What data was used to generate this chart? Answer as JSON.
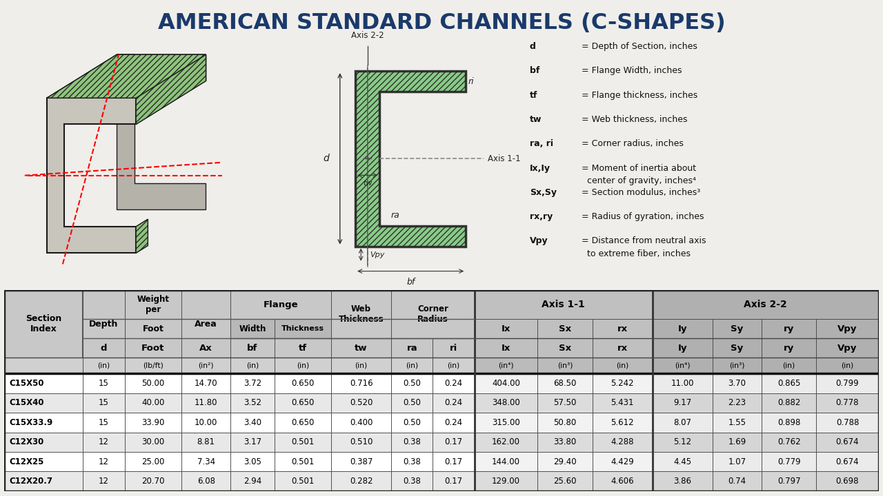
{
  "title": "AMERICAN STANDARD CHANNELS (C-SHAPES)",
  "title_color": "#1a3a6b",
  "bg_color": "#f0eeea",
  "rows": [
    [
      "C15X50",
      "15",
      "50.00",
      "14.70",
      "3.72",
      "0.650",
      "0.716",
      "0.50",
      "0.24",
      "404.00",
      "68.50",
      "5.242",
      "11.00",
      "3.70",
      "0.865",
      "0.799"
    ],
    [
      "C15X40",
      "15",
      "40.00",
      "11.80",
      "3.52",
      "0.650",
      "0.520",
      "0.50",
      "0.24",
      "348.00",
      "57.50",
      "5.431",
      "9.17",
      "2.23",
      "0.882",
      "0.778"
    ],
    [
      "C15X33.9",
      "15",
      "33.90",
      "10.00",
      "3.40",
      "0.650",
      "0.400",
      "0.50",
      "0.24",
      "315.00",
      "50.80",
      "5.612",
      "8.07",
      "1.55",
      "0.898",
      "0.788"
    ],
    [
      "C12X30",
      "12",
      "30.00",
      "8.81",
      "3.17",
      "0.501",
      "0.510",
      "0.38",
      "0.17",
      "162.00",
      "33.80",
      "4.288",
      "5.12",
      "1.69",
      "0.762",
      "0.674"
    ],
    [
      "C12X25",
      "12",
      "25.00",
      "7.34",
      "3.05",
      "0.501",
      "0.387",
      "0.38",
      "0.17",
      "144.00",
      "29.40",
      "4.429",
      "4.45",
      "1.07",
      "0.779",
      "0.674"
    ],
    [
      "C12X20.7",
      "12",
      "20.70",
      "6.08",
      "2.94",
      "0.501",
      "0.282",
      "0.38",
      "0.17",
      "129.00",
      "25.60",
      "4.606",
      "3.86",
      "0.74",
      "0.797",
      "0.698"
    ]
  ],
  "legend_lines": [
    [
      "d",
      "= Depth of Section, inches",
      ""
    ],
    [
      "bf",
      "= Flange Width, inches",
      ""
    ],
    [
      "tf",
      "= Flange thickness, inches",
      ""
    ],
    [
      "tw",
      "= Web thickness, inches",
      ""
    ],
    [
      "ra, ri",
      "= Corner radius, inches",
      ""
    ],
    [
      "Ix,Iy",
      "= Moment of inertia about",
      "  center of gravity, inches⁴"
    ],
    [
      "Sx,Sy",
      "= Section modulus, inches³",
      ""
    ],
    [
      "rx,ry",
      "= Radius of gyration, inches",
      ""
    ],
    [
      "Vpy",
      "= Distance from neutral axis",
      "  to extreme fiber, inches"
    ]
  ]
}
